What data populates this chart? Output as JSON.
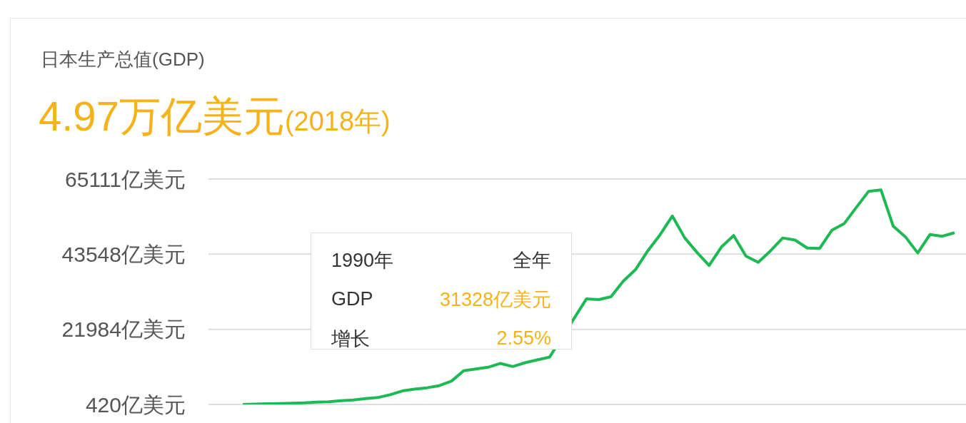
{
  "chart_data": {
    "type": "line",
    "title": "日本生产总值(GDP)",
    "subtitle": "4.97万亿美元(2018年)",
    "categories": [
      null,
      null,
      null,
      null,
      null,
      null,
      null,
      null,
      null,
      null,
      null,
      null,
      null,
      null,
      null,
      null,
      null,
      null,
      null,
      null,
      null,
      null,
      null,
      null,
      null,
      null,
      null,
      null,
      null,
      null,
      null,
      null,
      null,
      null,
      null,
      null,
      null,
      null,
      null,
      null,
      null,
      null,
      null,
      null,
      null,
      null,
      null,
      null,
      null,
      null,
      null,
      null,
      null,
      null,
      null,
      null,
      null,
      null,
      null
    ],
    "series": [
      {
        "color": "#1db954",
        "values": [
          440,
          500,
          600,
          700,
          800,
          900,
          1100,
          1200,
          1500,
          1700,
          2100,
          2400,
          3200,
          4300,
          4800,
          5200,
          5800,
          7100,
          10100,
          10600,
          11100,
          12200,
          11300,
          12400,
          13200,
          14000,
          null,
          null,
          30700,
          30500,
          31328,
          35800,
          39100,
          44500,
          49100,
          54500,
          48300,
          44100,
          40300,
          45600,
          48900,
          43000,
          41200,
          44500,
          48200,
          47600,
          45300,
          45200,
          50400,
          52300,
          57000,
          61600,
          62000,
          51600,
          48500,
          43900,
          49200,
          48700,
          49700
        ]
      }
    ],
    "ylim": [
      420,
      65111
    ],
    "yticks": [
      {
        "value": 420,
        "label": "420亿美元"
      },
      {
        "value": 21984,
        "label": "21984亿美元"
      },
      {
        "value": 43548,
        "label": "43548亿美元"
      },
      {
        "value": 65111,
        "label": "65111亿美元"
      }
    ],
    "tick_labels": "y",
    "grid": "y",
    "marker": "none",
    "line_style": "solid",
    "annotations": [
      "1990年",
      "全年",
      "GDP",
      "31328亿美元",
      "增长",
      "2.55%"
    ]
  }
}
